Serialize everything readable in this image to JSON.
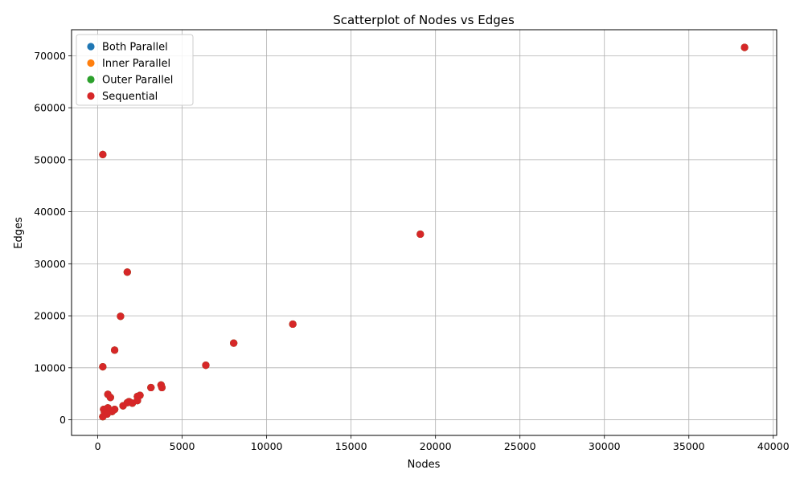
{
  "chart_data": {
    "type": "scatter",
    "title": "Scatterplot of Nodes vs Edges",
    "xlabel": "Nodes",
    "ylabel": "Edges",
    "xlim": [
      -1550,
      40200
    ],
    "ylim": [
      -3000,
      75000
    ],
    "xticks": [
      0,
      5000,
      10000,
      15000,
      20000,
      25000,
      30000,
      35000,
      40000
    ],
    "yticks": [
      0,
      10000,
      20000,
      30000,
      40000,
      50000,
      60000,
      70000
    ],
    "grid": true,
    "legend_position": "top-left",
    "series": [
      {
        "name": "Both Parallel",
        "color": "#1f77b4",
        "points": [
          [
            38300,
            71600
          ],
          [
            300,
            51000
          ],
          [
            19100,
            35700
          ],
          [
            1750,
            28400
          ],
          [
            1350,
            19900
          ],
          [
            11550,
            18400
          ],
          [
            8050,
            14750
          ],
          [
            1000,
            13400
          ],
          [
            6400,
            10500
          ],
          [
            300,
            10200
          ],
          [
            3750,
            6700
          ],
          [
            3800,
            6200
          ],
          [
            3150,
            6200
          ],
          [
            600,
            4900
          ],
          [
            2500,
            4700
          ],
          [
            2350,
            4500
          ],
          [
            750,
            4300
          ],
          [
            1850,
            3500
          ],
          [
            1750,
            3300
          ],
          [
            2050,
            3200
          ],
          [
            2350,
            3700
          ],
          [
            1500,
            2700
          ],
          [
            600,
            2300
          ],
          [
            350,
            2000
          ],
          [
            1000,
            2000
          ],
          [
            850,
            1600
          ],
          [
            400,
            1400
          ],
          [
            550,
            1100
          ],
          [
            300,
            600
          ]
        ]
      },
      {
        "name": "Inner Parallel",
        "color": "#ff7f0e",
        "points": [
          [
            38300,
            71600
          ],
          [
            300,
            51000
          ],
          [
            19100,
            35700
          ],
          [
            1750,
            28400
          ],
          [
            1350,
            19900
          ],
          [
            11550,
            18400
          ],
          [
            8050,
            14750
          ],
          [
            1000,
            13400
          ],
          [
            6400,
            10500
          ],
          [
            300,
            10200
          ],
          [
            3750,
            6700
          ],
          [
            3800,
            6200
          ],
          [
            3150,
            6200
          ],
          [
            600,
            4900
          ],
          [
            2500,
            4700
          ],
          [
            2350,
            4500
          ],
          [
            750,
            4300
          ],
          [
            1850,
            3500
          ],
          [
            1750,
            3300
          ],
          [
            2050,
            3200
          ],
          [
            2350,
            3700
          ],
          [
            1500,
            2700
          ],
          [
            600,
            2300
          ],
          [
            350,
            2000
          ],
          [
            1000,
            2000
          ],
          [
            850,
            1600
          ],
          [
            400,
            1400
          ],
          [
            550,
            1100
          ],
          [
            300,
            600
          ]
        ]
      },
      {
        "name": "Outer Parallel",
        "color": "#2ca02c",
        "points": [
          [
            38300,
            71600
          ],
          [
            300,
            51000
          ],
          [
            19100,
            35700
          ],
          [
            1750,
            28400
          ],
          [
            1350,
            19900
          ],
          [
            11550,
            18400
          ],
          [
            8050,
            14750
          ],
          [
            1000,
            13400
          ],
          [
            6400,
            10500
          ],
          [
            300,
            10200
          ],
          [
            3750,
            6700
          ],
          [
            3800,
            6200
          ],
          [
            3150,
            6200
          ],
          [
            600,
            4900
          ],
          [
            2500,
            4700
          ],
          [
            2350,
            4500
          ],
          [
            750,
            4300
          ],
          [
            1850,
            3500
          ],
          [
            1750,
            3300
          ],
          [
            2050,
            3200
          ],
          [
            2350,
            3700
          ],
          [
            1500,
            2700
          ],
          [
            600,
            2300
          ],
          [
            350,
            2000
          ],
          [
            1000,
            2000
          ],
          [
            850,
            1600
          ],
          [
            400,
            1400
          ],
          [
            550,
            1100
          ],
          [
            300,
            600
          ]
        ]
      },
      {
        "name": "Sequential",
        "color": "#d62728",
        "points": [
          [
            38300,
            71600
          ],
          [
            300,
            51000
          ],
          [
            19100,
            35700
          ],
          [
            1750,
            28400
          ],
          [
            1350,
            19900
          ],
          [
            11550,
            18400
          ],
          [
            8050,
            14750
          ],
          [
            1000,
            13400
          ],
          [
            6400,
            10500
          ],
          [
            300,
            10200
          ],
          [
            3750,
            6700
          ],
          [
            3800,
            6200
          ],
          [
            3150,
            6200
          ],
          [
            600,
            4900
          ],
          [
            2500,
            4700
          ],
          [
            2350,
            4500
          ],
          [
            750,
            4300
          ],
          [
            1850,
            3500
          ],
          [
            1750,
            3300
          ],
          [
            2050,
            3200
          ],
          [
            2350,
            3700
          ],
          [
            1500,
            2700
          ],
          [
            600,
            2300
          ],
          [
            350,
            2000
          ],
          [
            1000,
            2000
          ],
          [
            850,
            1600
          ],
          [
            400,
            1400
          ],
          [
            550,
            1100
          ],
          [
            300,
            600
          ]
        ]
      }
    ]
  }
}
